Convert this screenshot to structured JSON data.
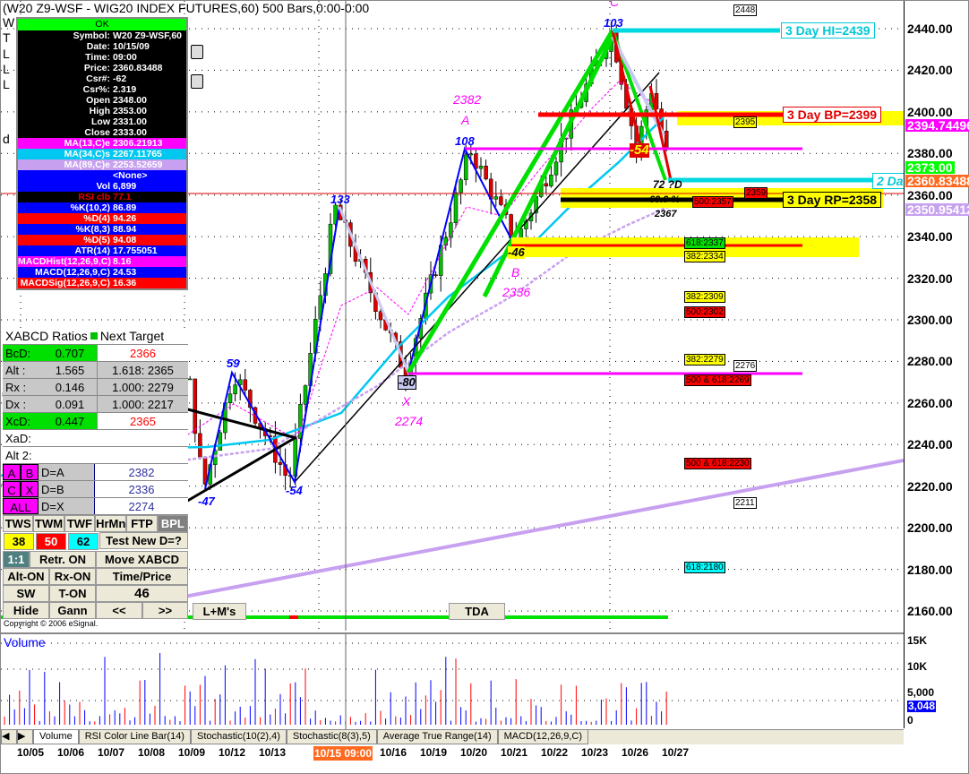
{
  "window": {
    "title": "(W20 Z9-WSF - WIG20 INDEX FUTURES,60) 500 Bars,0:00-0:00",
    "legend_letters": [
      "W",
      "T",
      "L",
      "L",
      "L",
      "d"
    ]
  },
  "colors": {
    "up": "#00c000",
    "down": "#e00000",
    "ma13": "#ff00ff",
    "ma34": "#00c8f0",
    "ma89": "#c8a0f0",
    "pattern": "#0000ff",
    "accent": "#ff6a20"
  },
  "data_window": {
    "ok": "OK",
    "rows": [
      {
        "k": "Symbol:",
        "v": "W20 Z9-WSF,60",
        "bg": "#000",
        "fg": "#fff"
      },
      {
        "k": "Date:",
        "v": "10/15/09",
        "bg": "#000",
        "fg": "#fff"
      },
      {
        "k": "Time:",
        "v": "09:00",
        "bg": "#000",
        "fg": "#fff"
      },
      {
        "k": "Price:",
        "v": "2360.83488",
        "bg": "#000",
        "fg": "#fff"
      },
      {
        "k": "Csr#:",
        "v": "-62",
        "bg": "#000",
        "fg": "#fff"
      },
      {
        "k": "Csr%:",
        "v": "2.319",
        "bg": "#000",
        "fg": "#fff"
      },
      {
        "k": "Open",
        "v": "2348.00",
        "bg": "#000",
        "fg": "#fff"
      },
      {
        "k": "High",
        "v": "2353.00",
        "bg": "#000",
        "fg": "#fff"
      },
      {
        "k": "Low",
        "v": "2331.00",
        "bg": "#000",
        "fg": "#fff"
      },
      {
        "k": "Close",
        "v": "2333.00",
        "bg": "#000",
        "fg": "#fff"
      },
      {
        "k": "MA(13,C)e",
        "v": "2306.21913",
        "bg": "#ff00ff",
        "fg": "#fff"
      },
      {
        "k": "MA(34,C)s",
        "v": "2267.11765",
        "bg": "#00c8f0",
        "fg": "#fff"
      },
      {
        "k": "MA(89,C)e",
        "v": "2253.52659",
        "bg": "#c8a0f0",
        "fg": "#fff"
      },
      {
        "k": "",
        "v": "<None>",
        "bg": "#0000ff",
        "fg": "#fff"
      },
      {
        "k": "Vol",
        "v": "6,899",
        "bg": "#0000ff",
        "fg": "#fff"
      },
      {
        "k": "RSI clb",
        "v": "77.1",
        "bg": "#000",
        "fg": "#e00000"
      },
      {
        "k": "%K(10,2)",
        "v": "86.89",
        "bg": "#0000ff",
        "fg": "#fff"
      },
      {
        "k": "%D(4)",
        "v": "94.26",
        "bg": "#ff0000",
        "fg": "#fff"
      },
      {
        "k": "%K(8,3)",
        "v": "88.94",
        "bg": "#0000ff",
        "fg": "#fff"
      },
      {
        "k": "%D(5)",
        "v": "94.08",
        "bg": "#ff0000",
        "fg": "#fff"
      },
      {
        "k": "ATR(14)",
        "v": "17.755051",
        "bg": "#0000ff",
        "fg": "#fff"
      },
      {
        "k": "MACDHist(12,26,9,C)",
        "v": "8.16",
        "bg": "#ff00ff",
        "fg": "#fff"
      },
      {
        "k": "MACD(12,26,9,C)",
        "v": "24.53",
        "bg": "#0000ff",
        "fg": "#fff"
      },
      {
        "k": "MACDSig(12,26,9,C)",
        "v": "16.36",
        "bg": "#ff0000",
        "fg": "#fff"
      }
    ]
  },
  "xabcd": {
    "header": "XABCD Ratios",
    "next_target": "Next Target",
    "ratios": [
      {
        "k": "BcD:",
        "v": "0.707",
        "t": "2366",
        "kbg": "#00e000",
        "tcolor": "#ff0000",
        "tbg": "#fff"
      },
      {
        "k": "Alt  :",
        "v": "1.565",
        "t": "1.618: 2365",
        "kbg": "#c8c8c8",
        "tcolor": "#000",
        "tbg": "#c8c8c8"
      },
      {
        "k": "Rx   :",
        "v": "0.146",
        "t": "1.000: 2279",
        "kbg": "#c8c8c8",
        "tcolor": "#000",
        "tbg": "#c8c8c8"
      },
      {
        "k": "Dx   :",
        "v": "0.091",
        "t": "1.000: 2217",
        "kbg": "#c8c8c8",
        "tcolor": "#000",
        "tbg": "#c8c8c8"
      },
      {
        "k": "XcD:",
        "v": "0.447",
        "t": "2365",
        "kbg": "#00e000",
        "tcolor": "#ff0000",
        "tbg": "#fff"
      }
    ],
    "xad": "XaD:",
    "alt2": "Alt 2:",
    "points": [
      {
        "a": "A",
        "b": "B",
        "d": "D=A",
        "v": "2382"
      },
      {
        "a": "C",
        "b": "X",
        "d": "D=B",
        "v": "2336"
      },
      {
        "a": "ALL",
        "b": "",
        "d": "D=X",
        "v": "2274"
      }
    ],
    "row1": [
      "TWS",
      "TWM",
      "TWF",
      "HrMn",
      "FTP",
      "BPL"
    ],
    "fibs": [
      "38",
      "50",
      "62"
    ],
    "test": "Test New D=?",
    "ratio": "1:1",
    "retr": "Retr. ON",
    "move": "Move XABCD",
    "alt_on": "Alt-ON",
    "rx_on": "Rx-ON",
    "time_price": "Time/Price",
    "sw_off": "SW OFF",
    "t_on": "T-ON",
    "count": "46",
    "hide": "Hide",
    "gann": "Gann",
    "prev": "<<",
    "next": ">>"
  },
  "buttons": {
    "lm": "L+M's",
    "tda": "TDA"
  },
  "copyright": "Copyright © 2006 eSignal.",
  "price_axis": {
    "ticks": [
      "2440.00",
      "2420.00",
      "2400.00",
      "2380.00",
      "2360.00",
      "2340.00",
      "2320.00",
      "2300.00",
      "2280.00",
      "2260.00",
      "2240.00",
      "2220.00",
      "2200.00",
      "2180.00",
      "2160.00"
    ],
    "markers": [
      {
        "v": "2394.74496",
        "bg": "#ff00ff",
        "fg": "#fff"
      },
      {
        "v": "2373.00",
        "bg": "#00ff00",
        "fg": "#fff"
      },
      {
        "v": "2360.83488",
        "bg": "#ff6a20",
        "fg": "#fff"
      },
      {
        "v": "2350.95412",
        "bg": "#c8a0f0",
        "fg": "#fff"
      }
    ]
  },
  "levels": {
    "hi": "3 Day HI=2439",
    "bp": "3 Day BP=2399",
    "rp": "3 Day RP=2358",
    "two_day": "2 Da"
  },
  "fib_labels": [
    {
      "t": "2448",
      "bg": "#fff",
      "p": 2449
    },
    {
      "t": "2395",
      "bg": "#ffff00",
      "p": 2395
    },
    {
      "t": "500:2357",
      "bg": "#ff0000",
      "p": 2357
    },
    {
      "t": "2359",
      "bg": "#ff0000",
      "p": 2361
    },
    {
      "t": "618:2337",
      "bg": "#00e000",
      "p": 2339
    },
    {
      "t": "382:2334",
      "bg": "#ffff00",
      "p": 2334
    },
    {
      "t": "382:2309",
      "bg": "#ffff00",
      "p": 2311
    },
    {
      "t": "500:2302",
      "bg": "#ff0000",
      "p": 2304
    },
    {
      "t": "382:2279",
      "bg": "#ffff00",
      "p": 2281
    },
    {
      "t": "2276",
      "bg": "#fff",
      "p": 2278
    },
    {
      "t": "500 & 618:2269",
      "bg": "#ff0000",
      "p": 2271
    },
    {
      "t": "500 & 618:2230",
      "bg": "#ff0000",
      "p": 2231
    },
    {
      "t": "2211",
      "bg": "#fff",
      "p": 2212
    },
    {
      "t": "618:2180",
      "bg": "#00ffff",
      "p": 2181
    }
  ],
  "pattern_labels": {
    "swings": [
      "59",
      "-47",
      "-54",
      "133",
      "-80",
      "108",
      "-46",
      "103",
      "-54"
    ],
    "A": "A",
    "A_price": "2382",
    "B": "B",
    "B_price": "2336",
    "C": "C",
    "X": "X",
    "X_price": "2274",
    "d_note": "72 ?D",
    "pct": "69.9 %",
    "d_price": "2367"
  },
  "pivots": [
    {
      "date": "10/05",
      "time": "00:00",
      "price": 2265
    },
    {
      "date": "10/05",
      "time": "13:00",
      "price": 2215
    },
    {
      "date": "10/06",
      "time": "16:00",
      "price": 2265
    },
    {
      "date": "10/07",
      "time": "16:00",
      "price": 2210
    },
    {
      "date": "10/08",
      "time": "16:00",
      "price": 2275
    },
    {
      "date": "10/09",
      "time": "11:00",
      "price": 2218
    },
    {
      "date": "10/12",
      "time": "09:00",
      "price": 2275
    },
    {
      "date": "10/13",
      "time": "12:00",
      "price": 2222
    },
    {
      "date": "10/14",
      "time": "14:00",
      "price": 2354
    },
    {
      "date": "10/16",
      "time": "11:00",
      "price": 2275
    },
    {
      "date": "10/19",
      "time": "16:00",
      "price": 2382
    },
    {
      "date": "10/21",
      "time": "09:00",
      "price": 2337
    },
    {
      "date": "10/23",
      "time": "12:00",
      "price": 2439
    },
    {
      "date": "10/26",
      "time": "09:00",
      "price": 2382
    },
    {
      "date": "10/26",
      "time": "12:00",
      "price": 2412
    },
    {
      "date": "10/26",
      "time": "16:00",
      "price": 2368
    }
  ],
  "volume": {
    "title": "Volume",
    "ticks": [
      "15K",
      "10K",
      "5,000",
      "0"
    ],
    "last": "3,048"
  },
  "tabs": [
    "Volume",
    "RSI Color Line Bar(14)",
    "Stochastic(10(2),4)",
    "Stochastic(8(3),5)",
    "Average True Range(14)",
    "MACD(12,26,9,C)"
  ],
  "dates": [
    "10/05",
    "10/06",
    "10/07",
    "10/08",
    "10/09",
    "10/12",
    "10/13",
    "10/16",
    "10/19",
    "10/20",
    "10/21",
    "10/22",
    "10/23",
    "10/26",
    "10/27"
  ],
  "cursor_date": "10/15 09:00"
}
